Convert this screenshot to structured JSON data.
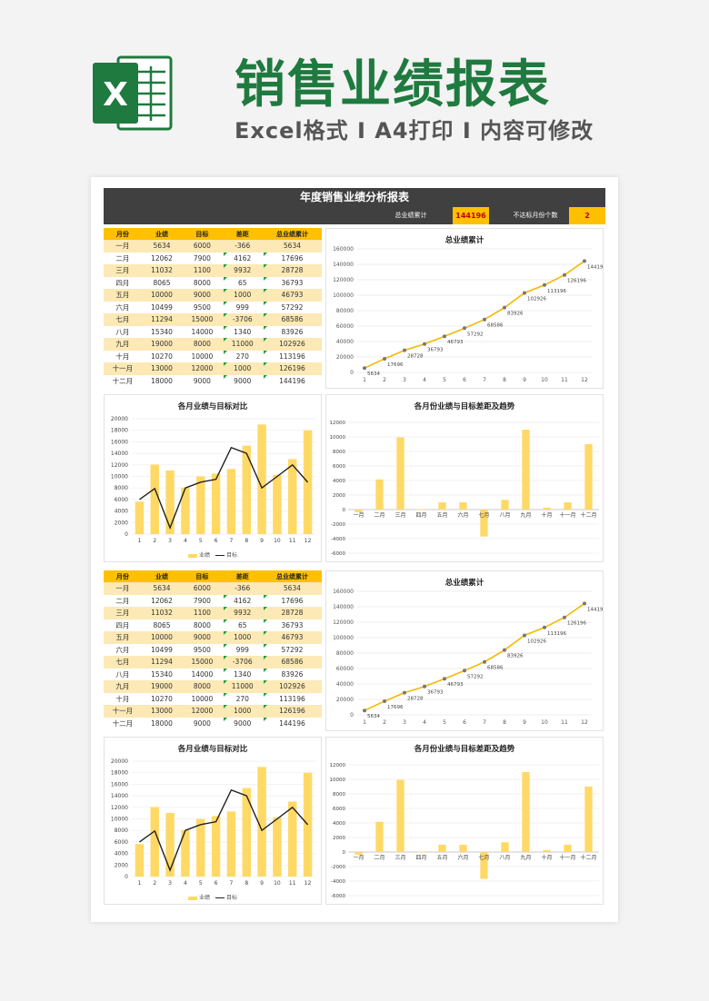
{
  "promo": {
    "title": "销售业绩报表",
    "subtitle": "Excel格式 Ⅰ A4打印 Ⅰ 内容可修改",
    "logo_letter": "X",
    "accent": "#1f7a3f"
  },
  "report": {
    "title": "年度销售业绩分析报表",
    "total_label": "总业绩累计",
    "total_value": "144196",
    "miss_label": "不达标月份个数",
    "miss_value": "2"
  },
  "table": {
    "headers": [
      "月份",
      "业绩",
      "目标",
      "差距",
      "总业绩累计"
    ],
    "rows": [
      [
        "一月",
        "5634",
        "6000",
        "-366",
        "5634"
      ],
      [
        "二月",
        "12062",
        "7900",
        "4162",
        "17696"
      ],
      [
        "三月",
        "11032",
        "1100",
        "9932",
        "28728"
      ],
      [
        "四月",
        "8065",
        "8000",
        "65",
        "36793"
      ],
      [
        "五月",
        "10000",
        "9000",
        "1000",
        "46793"
      ],
      [
        "六月",
        "10499",
        "9500",
        "999",
        "57292"
      ],
      [
        "七月",
        "11294",
        "15000",
        "-3706",
        "68586"
      ],
      [
        "八月",
        "15340",
        "14000",
        "1340",
        "83926"
      ],
      [
        "九月",
        "19000",
        "8000",
        "11000",
        "102926"
      ],
      [
        "十月",
        "10270",
        "10000",
        "270",
        "113196"
      ],
      [
        "十一月",
        "13000",
        "12000",
        "1000",
        "126196"
      ],
      [
        "十二月",
        "18000",
        "9000",
        "9000",
        "144196"
      ]
    ]
  },
  "chart_data": [
    {
      "type": "line",
      "title": "总业绩累计",
      "x": [
        1,
        2,
        3,
        4,
        5,
        6,
        7,
        8,
        9,
        10,
        11,
        12
      ],
      "values": [
        5634,
        17696,
        28728,
        36793,
        46793,
        57292,
        68586,
        83926,
        102926,
        113196,
        126196,
        144196
      ],
      "ylim": [
        0,
        160000
      ],
      "yticks": [
        0,
        20000,
        40000,
        60000,
        80000,
        100000,
        120000,
        140000,
        160000
      ],
      "color": "#f5b800"
    },
    {
      "type": "bar",
      "title": "各月业绩与目标对比",
      "x": [
        1,
        2,
        3,
        4,
        5,
        6,
        7,
        8,
        9,
        10,
        11,
        12
      ],
      "series": [
        {
          "name": "业绩",
          "values": [
            5634,
            12062,
            11032,
            8065,
            10000,
            10499,
            11294,
            15340,
            19000,
            10270,
            13000,
            18000
          ]
        },
        {
          "name": "目标",
          "values": [
            6000,
            7900,
            1100,
            8000,
            9000,
            9500,
            15000,
            14000,
            8000,
            10000,
            12000,
            9000
          ]
        }
      ],
      "ylim": [
        0,
        20000
      ],
      "yticks": [
        0,
        2000,
        4000,
        6000,
        8000,
        10000,
        12000,
        14000,
        16000,
        18000,
        20000
      ],
      "colors": [
        "#ffd966",
        "#222222"
      ]
    },
    {
      "type": "bar",
      "title": "各月份业绩与目标差距及趋势",
      "categories": [
        "一月",
        "二月",
        "三月",
        "四月",
        "五月",
        "六月",
        "七月",
        "八月",
        "九月",
        "十月",
        "十一月",
        "十二月"
      ],
      "values": [
        -366,
        4162,
        9932,
        65,
        1000,
        999,
        -3706,
        1340,
        11000,
        270,
        1000,
        9000
      ],
      "ylim": [
        -6000,
        12000
      ],
      "yticks": [
        -6000,
        -4000,
        -2000,
        0,
        2000,
        4000,
        6000,
        8000,
        10000,
        12000
      ],
      "color": "#ffd966"
    }
  ]
}
